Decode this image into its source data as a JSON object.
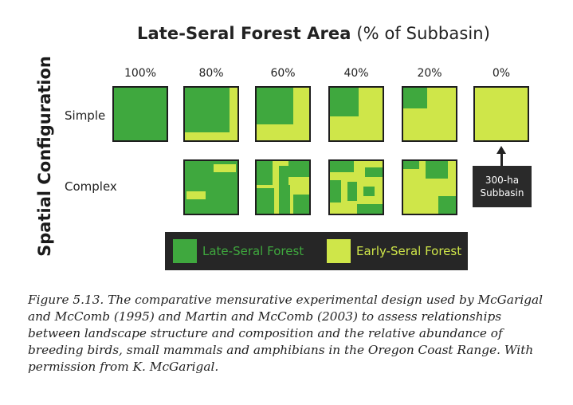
{
  "title": {
    "bold": "Late-Seral Forest Area",
    "rest": "(% of Subbasin)"
  },
  "y_axis_label": "Spatial Configuration",
  "columns": [
    "100%",
    "80%",
    "60%",
    "40%",
    "20%",
    "0%"
  ],
  "rows": {
    "simple": "Simple",
    "complex": "Complex"
  },
  "callout": {
    "line1": "300-ha",
    "line2": "Subbasin"
  },
  "legend": {
    "late": "Late-Seral Forest",
    "early": "Early-Seral Forest"
  },
  "colors": {
    "late_seral": "#3fa83e",
    "early_seral": "#cfe649",
    "legend_bg": "#262626",
    "callout_bg": "#2a2a2a"
  },
  "caption": "Figure 5.13. The comparative mensurative experimental design used by McGarigal and McComb (1995) and Martin and McComb (2003) to assess relationships between landscape structure and composition and the relative abundance of breeding birds, small mammals and amphibians in the Oregon Coast Range. With permission from K. McGarigal."
}
